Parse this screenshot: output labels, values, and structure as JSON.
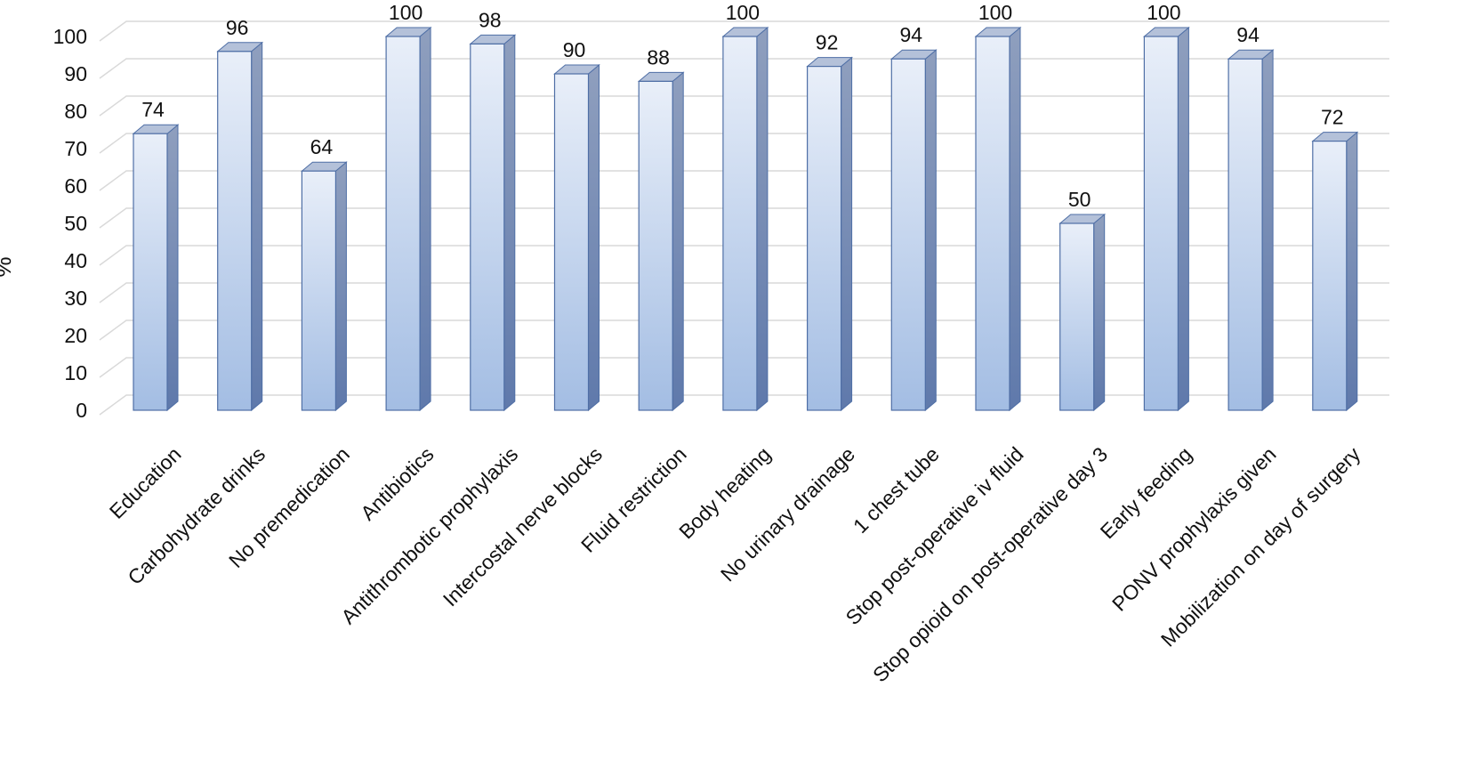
{
  "chart_data": {
    "type": "bar",
    "style": "3d-column",
    "ylabel": "%",
    "ylim": [
      0,
      100
    ],
    "yticks": [
      0,
      10,
      20,
      30,
      40,
      50,
      60,
      70,
      80,
      90,
      100
    ],
    "grid": true,
    "legend": "none",
    "categories": [
      "Education",
      "Carbohydrate drinks",
      "No premedication",
      "Antibiotics",
      "Antithrombotic prophylaxis",
      "Intercostal nerve blocks",
      "Fluid restriction",
      "Body heating",
      "No urinary drainage",
      "1 chest tube",
      "Stop post-operative iv fluid",
      "Stop opioid on post-operative day 3",
      "Early feeding",
      "PONV prophylaxis given",
      "Mobilization on day of surgery"
    ],
    "values": [
      74,
      96,
      64,
      100,
      98,
      90,
      88,
      100,
      92,
      94,
      100,
      50,
      100,
      94,
      72
    ],
    "colors": {
      "bar_top": "#e9eff9",
      "bar_bottom": "#a3bde3",
      "bar_side": "#6f88b8",
      "bar_cap": "#b4c1d9",
      "bar_outline": "#4f6fa6",
      "grid": "#d9d9d9"
    }
  }
}
